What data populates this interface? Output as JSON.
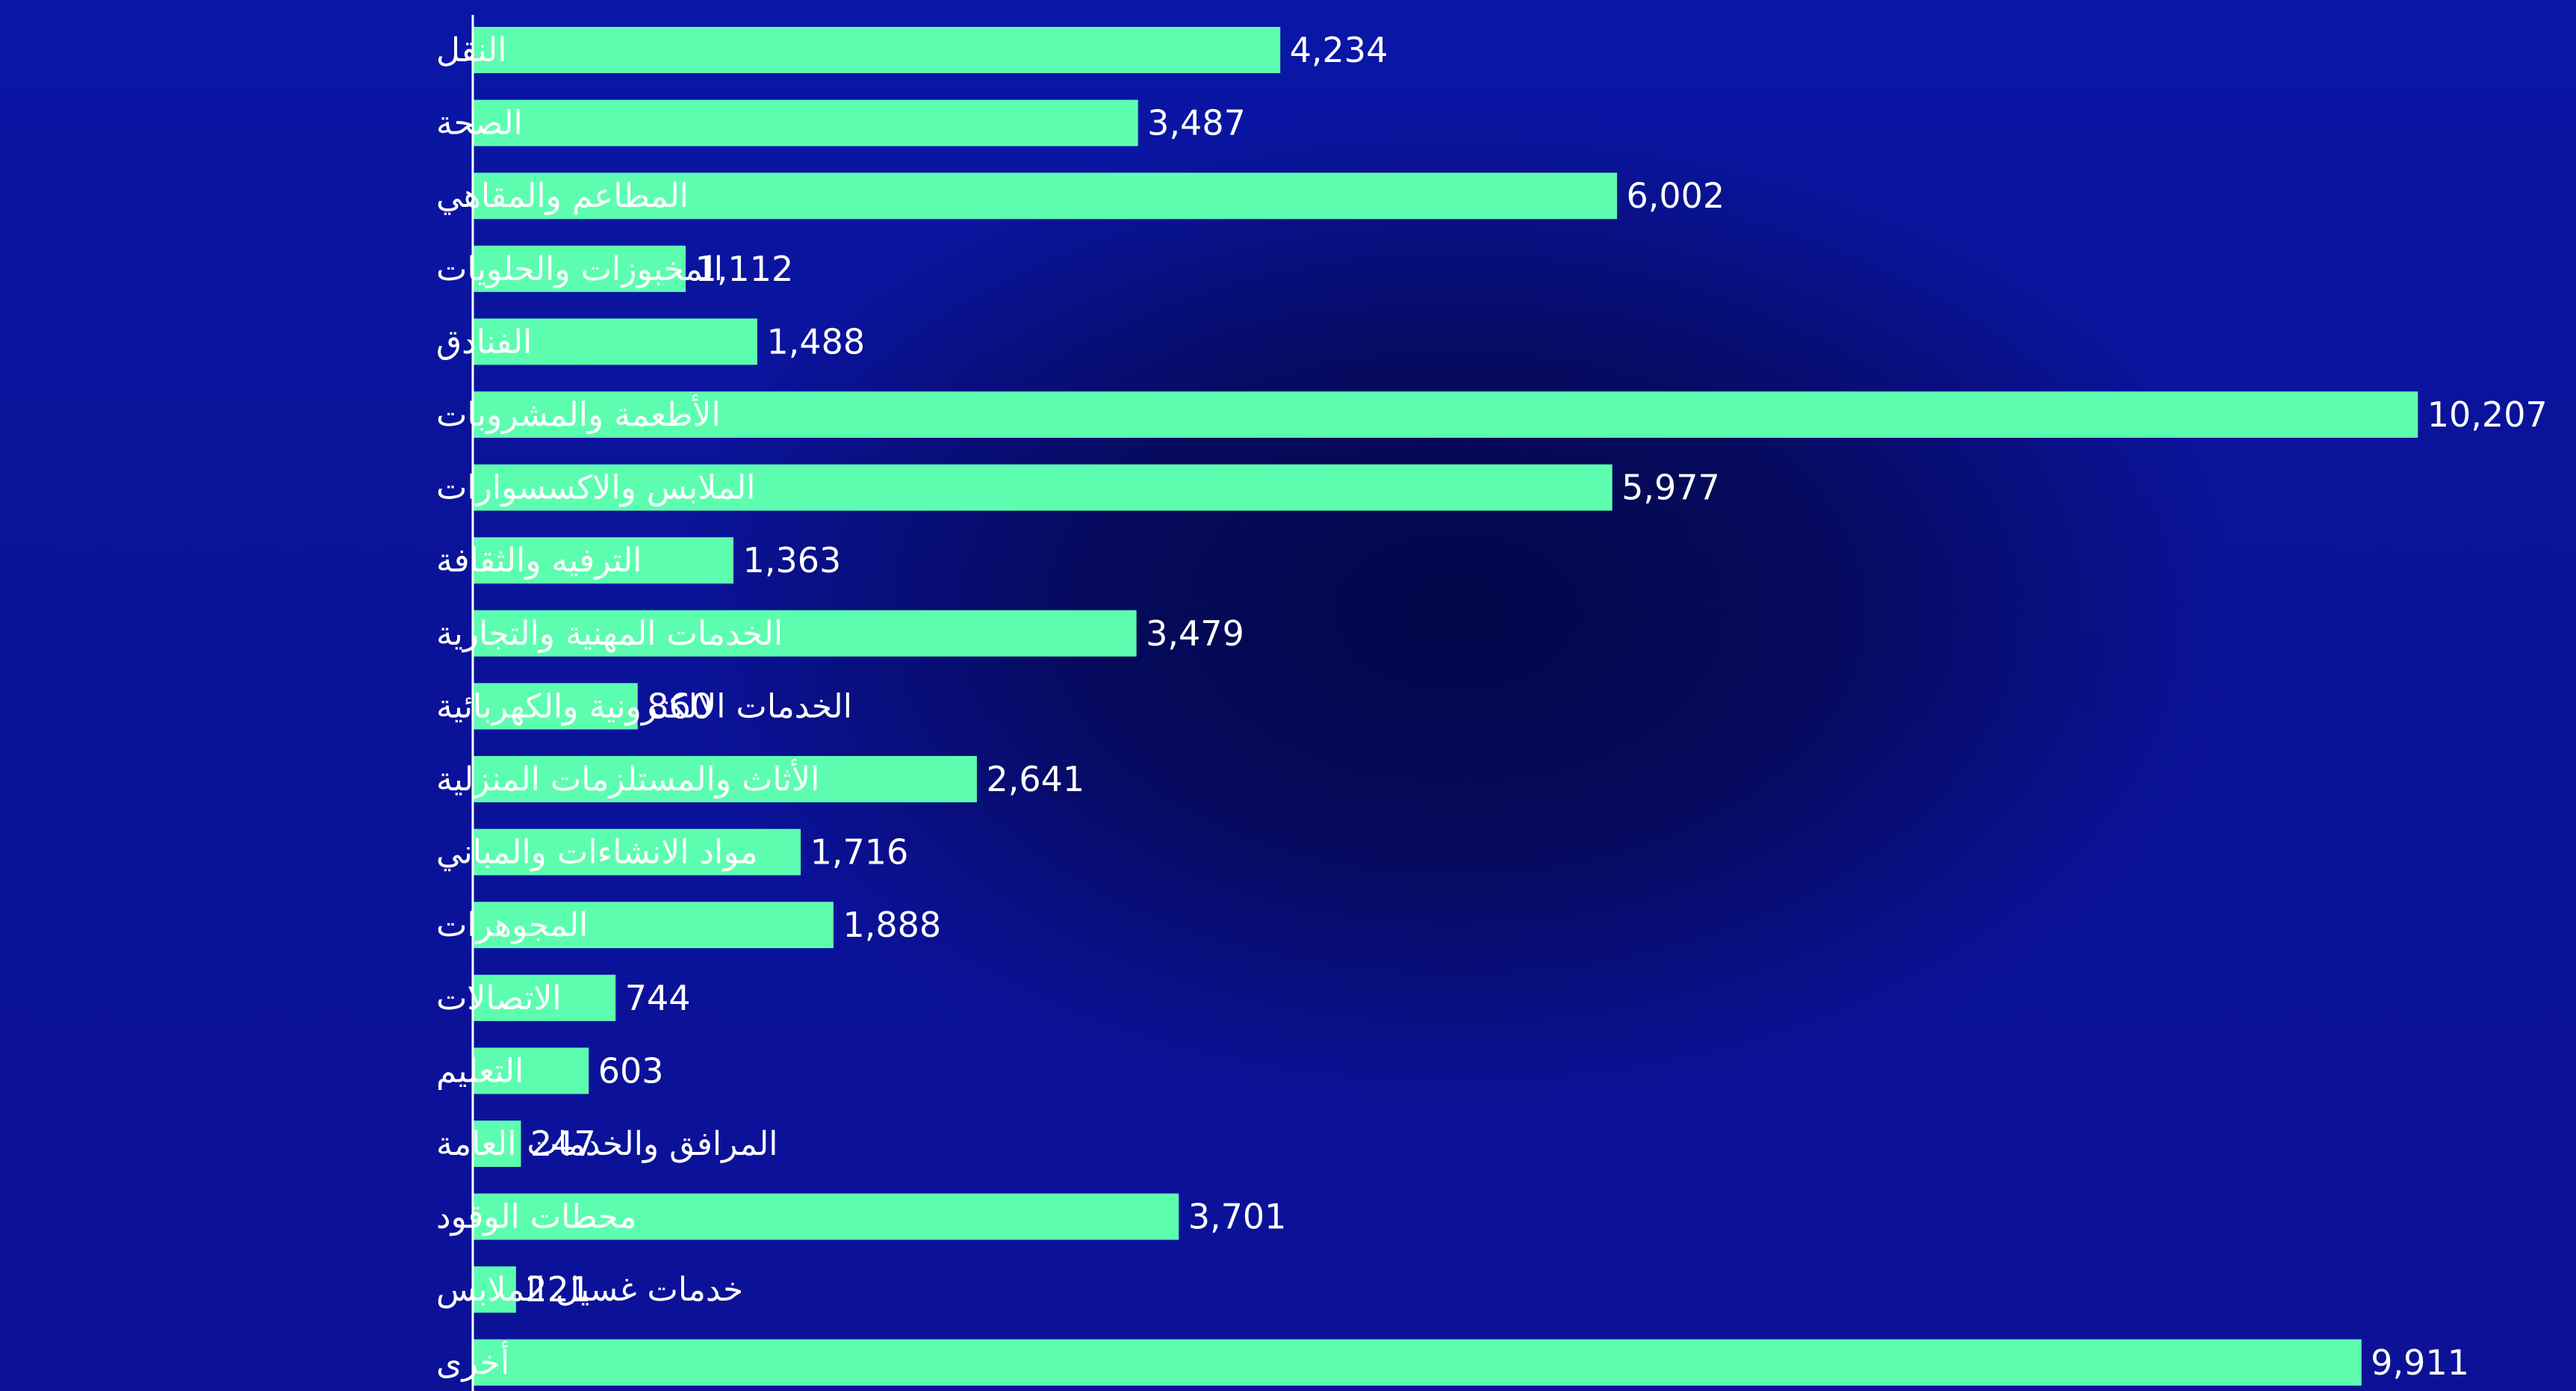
{
  "chart_data": {
    "type": "bar",
    "orientation": "horizontal",
    "categories": [
      "النقل",
      "الصحة",
      "المطاعم والمقاهي",
      "المخبوزات والحلويات",
      "الفنادق",
      "الأطعمة  والمشروبات",
      "الملابس والاكسسوارات",
      "الترفيه والثقافة",
      "الخدمات المهنية والتجارية",
      "الخدمات الالكترونية والكهربائية",
      "الأثاث والمستلزمات المنزلية",
      "مواد الانشاءات والمباني",
      "المجوهرات",
      "الاتصالات",
      "التعليم",
      "المرافق والخدمات العامة",
      "محطات الوقود",
      "خدمات غسيل الملابس",
      "أخرى"
    ],
    "values": [
      4234,
      3487,
      6002,
      1112,
      1488,
      10207,
      5977,
      1363,
      3479,
      860,
      2641,
      1716,
      1888,
      744,
      603,
      247,
      3701,
      221,
      9911
    ],
    "value_labels": [
      "4,234",
      "3,487",
      "6,002",
      "1,112",
      "1,488",
      "10,207",
      "5,977",
      "1,363",
      "3,479",
      "860",
      "2,641",
      "1,716",
      "1,888",
      "744",
      "603",
      "247",
      "3,701",
      "221",
      "9,911"
    ],
    "xlim": [
      0,
      10600
    ],
    "grid": false,
    "legend": "none",
    "colors": {
      "bar": "#5dfdb0",
      "text": "#ffffff",
      "background": "#0a139a"
    }
  }
}
